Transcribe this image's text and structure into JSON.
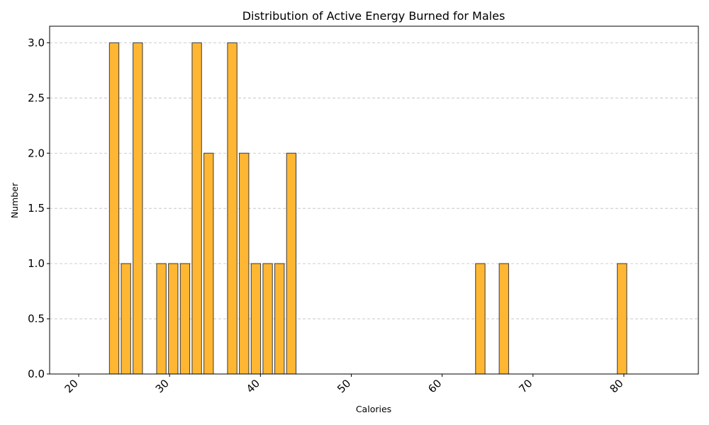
{
  "chart_data": {
    "type": "bar",
    "title": "Distribution of Active Energy Burned for Males",
    "xlabel": "Calories",
    "ylabel": "Number",
    "xlim": [
      16.8,
      88.2
    ],
    "ylim": [
      0,
      3.15
    ],
    "xticks": [
      20,
      30,
      40,
      50,
      60,
      70,
      80
    ],
    "yticks": [
      "0.0",
      "0.5",
      "1.0",
      "1.5",
      "2.0",
      "2.5",
      "3.0"
    ],
    "grid": "y-dashed",
    "bar_color": "#ffb733",
    "edge_color": "#3a3a3a",
    "bin_width": 1.3,
    "x": [
      20.0,
      21.3,
      22.6,
      23.9,
      25.2,
      26.5,
      27.8,
      29.1,
      30.4,
      31.7,
      33.0,
      34.3,
      35.6,
      36.9,
      38.2,
      39.5,
      40.8,
      42.1,
      43.4,
      44.7,
      46.0,
      47.3,
      48.6,
      49.9,
      51.2,
      52.5,
      53.8,
      55.1,
      56.4,
      57.7,
      59.0,
      60.3,
      61.6,
      62.9,
      64.2,
      65.5,
      66.8,
      68.1,
      69.4,
      70.7,
      72.0,
      73.3,
      74.6,
      75.9,
      77.2,
      78.5,
      79.8,
      81.1,
      82.4,
      83.7
    ],
    "values": [
      0,
      0,
      0,
      3,
      1,
      3,
      0,
      1,
      1,
      1,
      3,
      2,
      0,
      3,
      2,
      1,
      1,
      1,
      2,
      0,
      0,
      0,
      0,
      0,
      0,
      0,
      0,
      0,
      0,
      0,
      0,
      0,
      0,
      0,
      1,
      0,
      1,
      0,
      0,
      0,
      0,
      0,
      0,
      0,
      0,
      0,
      1,
      0,
      0,
      0
    ]
  }
}
